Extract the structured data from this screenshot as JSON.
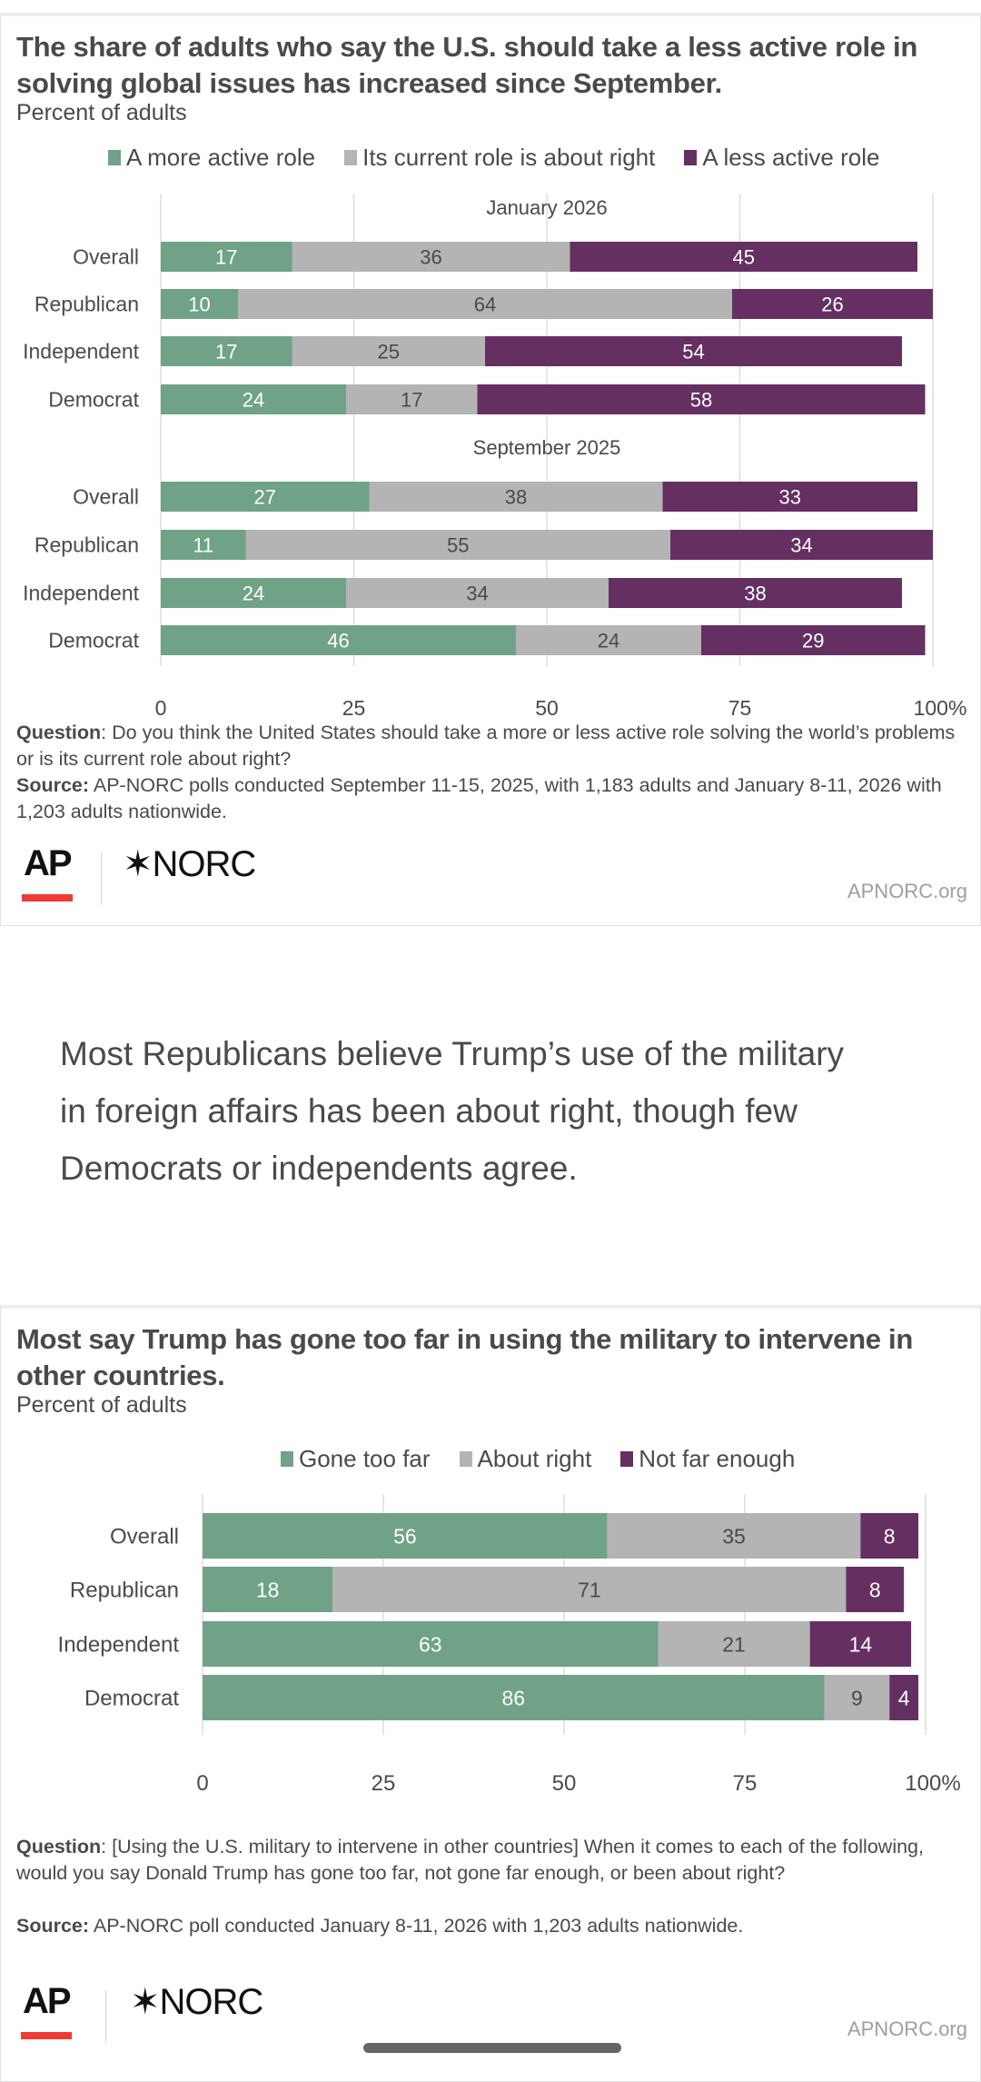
{
  "colors": {
    "more": "#70a288",
    "current": "#b4b4b4",
    "less": "#652f62",
    "grid": "#dddddd",
    "text": "#4a4a4a"
  },
  "chart_data": [
    {
      "type": "bar",
      "orientation": "horizontal-stacked",
      "title": "The share of adults who say the U.S. should take a less active role in solving global issues has increased since September.",
      "subtitle": "Percent of adults",
      "legend": [
        "A more active role",
        "Its current role is about right",
        "A less active role"
      ],
      "legend_position": "top",
      "xlim": [
        0,
        100
      ],
      "xticks": [
        "0",
        "25",
        "50",
        "75",
        "100%"
      ],
      "grid": true,
      "groups": [
        {
          "label": "January 2026",
          "categories": [
            "Overall",
            "Republican",
            "Independent",
            "Democrat"
          ],
          "series": [
            {
              "name": "A more active role",
              "values": [
                17,
                10,
                17,
                24
              ]
            },
            {
              "name": "Its current role is about right",
              "values": [
                36,
                64,
                25,
                17
              ]
            },
            {
              "name": "A less active role",
              "values": [
                45,
                26,
                54,
                58
              ]
            }
          ]
        },
        {
          "label": "September 2025",
          "categories": [
            "Overall",
            "Republican",
            "Independent",
            "Democrat"
          ],
          "series": [
            {
              "name": "A more active role",
              "values": [
                27,
                11,
                24,
                46
              ]
            },
            {
              "name": "Its current role is about right",
              "values": [
                38,
                55,
                34,
                24
              ]
            },
            {
              "name": "A less active role",
              "values": [
                33,
                34,
                38,
                29
              ]
            }
          ]
        }
      ]
    },
    {
      "type": "bar",
      "orientation": "horizontal-stacked",
      "title": "Most say Trump has gone too far in using the military to intervene in other countries.",
      "subtitle": "Percent of adults",
      "legend": [
        "Gone too far",
        "About right",
        "Not far enough"
      ],
      "legend_position": "top",
      "xlim": [
        0,
        100
      ],
      "xticks": [
        "0",
        "25",
        "50",
        "75",
        "100%"
      ],
      "grid": true,
      "categories": [
        "Overall",
        "Republican",
        "Independent",
        "Democrat"
      ],
      "series": [
        {
          "name": "Gone too far",
          "values": [
            56,
            18,
            63,
            86
          ]
        },
        {
          "name": "About right",
          "values": [
            35,
            71,
            21,
            9
          ]
        },
        {
          "name": "Not far enough",
          "values": [
            8,
            8,
            14,
            4
          ]
        }
      ]
    }
  ],
  "chart1": {
    "question_label": "Question",
    "question_text": ": Do you think the United States should take a more or less active role solving the world’s problems or is its current role about right?",
    "source_label": "Source:",
    "source_text": " AP-NORC polls conducted September 11-15, 2025, with 1,183 adults and January 8-11, 2026 with 1,203 adults nationwide."
  },
  "narrative": "Most Republicans believe Trump’s use of the military in foreign affairs has been about right, though few Democrats or independents agree.",
  "chart2": {
    "question_label": "Question",
    "question_text": ": [Using the U.S. military to intervene in other countries] When it comes to each of the following, would you say Donald Trump has gone too far, not gone far enough, or been about right?",
    "source_label": "Source:",
    "source_text": " AP-NORC poll conducted January 8-11, 2026 with 1,203 adults nationwide."
  },
  "branding": {
    "ap": "AP",
    "norc": "NORC",
    "norc_star": "✶",
    "url": "APNORC.org"
  }
}
